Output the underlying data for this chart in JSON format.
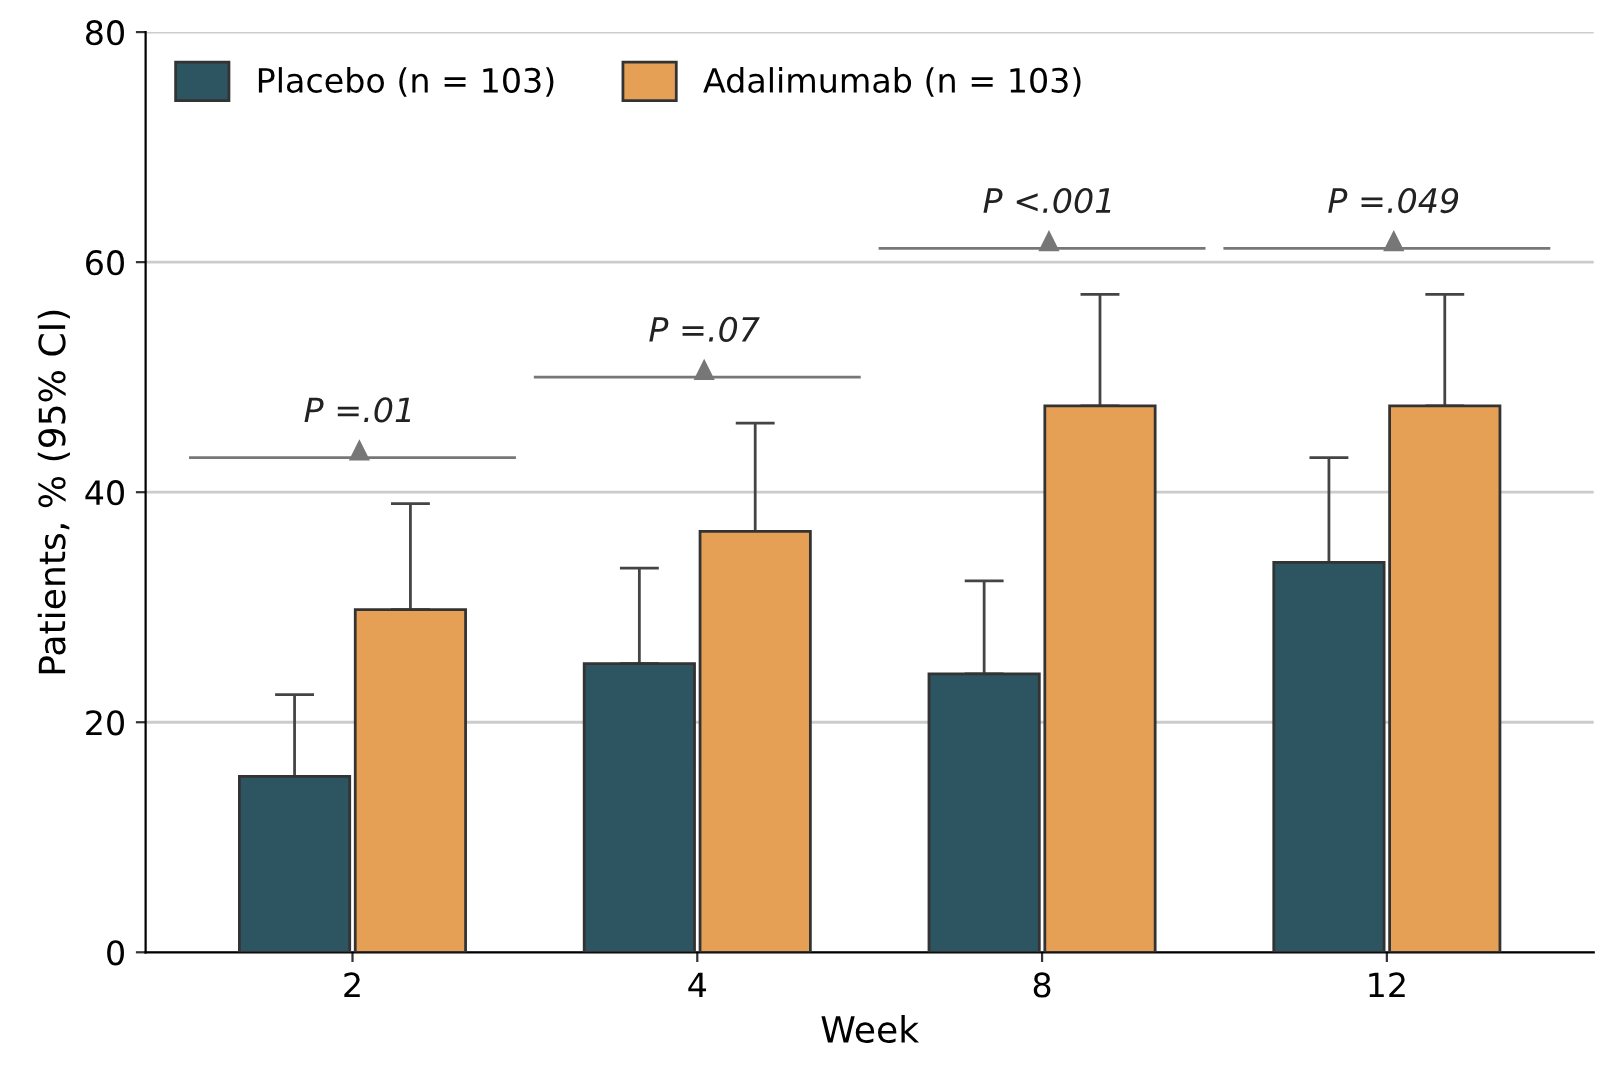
{
  "chart_data": {
    "type": "bar",
    "xlabel": "Week",
    "ylabel": "Patients, % (95% CI)",
    "categories": [
      "2",
      "4",
      "8",
      "12"
    ],
    "series": [
      {
        "name": "Placebo (n = 103)",
        "color": "#2c5461",
        "values": [
          15.3,
          25.1,
          24.2,
          33.9
        ],
        "errors": [
          [
            15.3,
            22.4
          ],
          [
            25.1,
            33.4
          ],
          [
            24.2,
            32.3
          ],
          [
            33.9,
            43.0
          ]
        ]
      },
      {
        "name": "Adalimumab (n = 103)",
        "color": "#e5a055",
        "values": [
          29.8,
          36.6,
          47.5,
          47.5
        ],
        "errors": [
          [
            29.8,
            39.0
          ],
          [
            36.6,
            46.0
          ],
          [
            47.5,
            57.2
          ],
          [
            47.5,
            57.2
          ]
        ]
      }
    ],
    "annotations": [
      "P =.01",
      "P =.07",
      "P <.001",
      "P =.049"
    ],
    "ylim": [
      0,
      80
    ],
    "yticks": [
      0,
      20,
      40,
      60,
      80
    ],
    "grid": "y",
    "legend": "top left"
  }
}
